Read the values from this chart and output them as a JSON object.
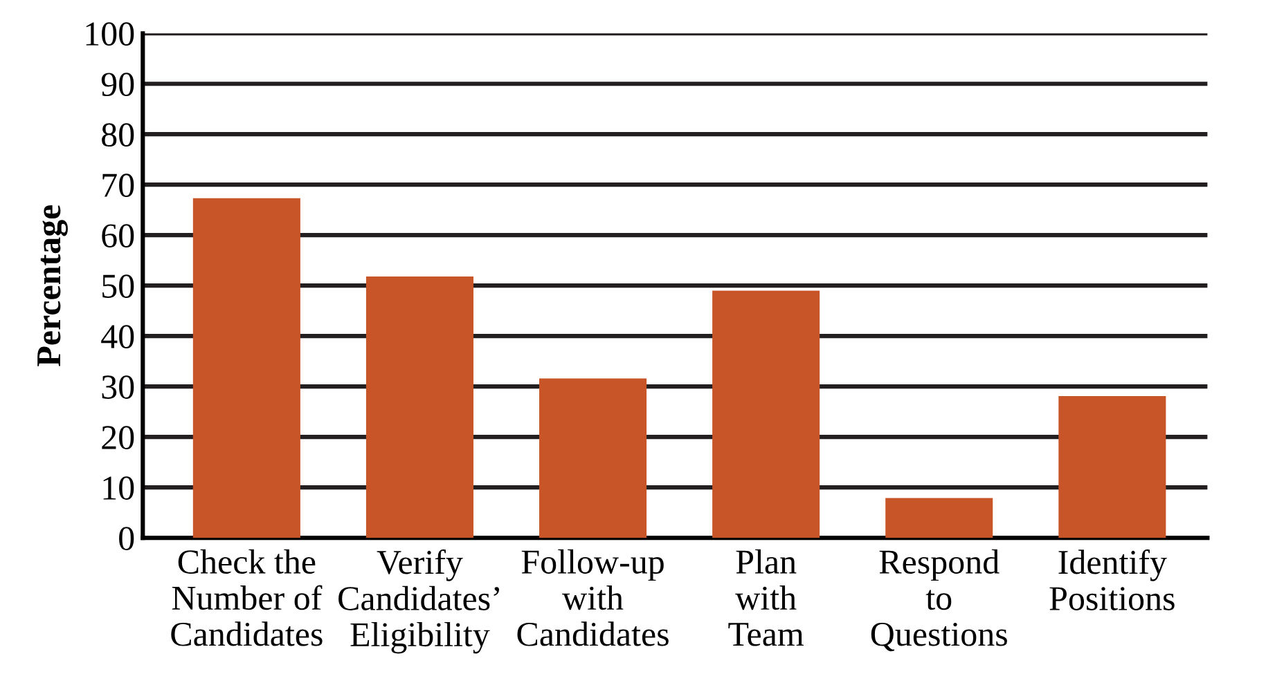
{
  "chart_data": {
    "type": "bar",
    "ylabel": "Percentage",
    "categories": [
      "Check the\nNumber of\nCandidates",
      "Verify\nCandidates’\nEligibility",
      "Follow-up\nwith\nCandidates",
      "Plan\nwith\nTeam",
      "Respond\nto\nQuestions",
      "Identify\nPositions"
    ],
    "values": [
      67.3,
      51.8,
      31.6,
      49.0,
      7.9,
      28.1
    ],
    "color": "#c85527",
    "ylim": [
      0,
      100
    ],
    "yticks": [
      0,
      10,
      20,
      30,
      40,
      50,
      60,
      70,
      80,
      90,
      100
    ],
    "grid": "y"
  }
}
